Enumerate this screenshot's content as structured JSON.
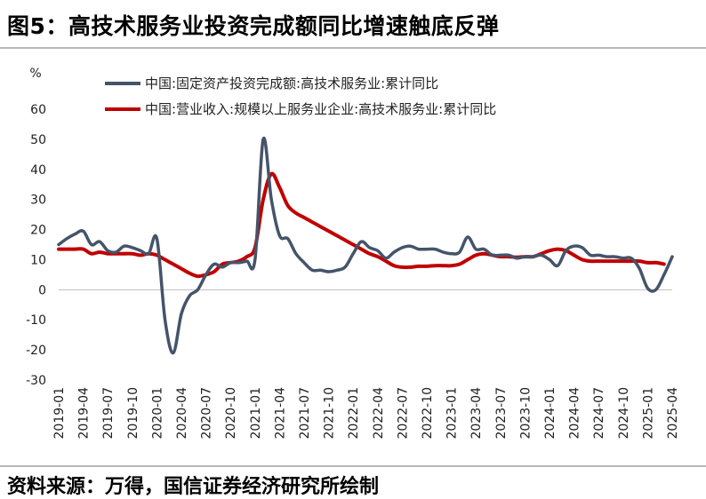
{
  "title": "图5：高技术服务业投资完成额同比增速触底反弹",
  "source": "资料来源：万得，国信证券经济研究所绘制",
  "chart_data": {
    "type": "line",
    "ylabel": "%",
    "ylim": [
      -30,
      60
    ],
    "yticks": [
      -30,
      -20,
      -10,
      0,
      10,
      20,
      30,
      40,
      50,
      60
    ],
    "xlim": [
      "2019-01",
      "2025-04"
    ],
    "xticks": [
      "2019-01",
      "2019-04",
      "2019-07",
      "2019-10",
      "2020-01",
      "2020-04",
      "2020-07",
      "2020-10",
      "2021-01",
      "2021-04",
      "2021-07",
      "2021-10",
      "2022-01",
      "2022-04",
      "2022-07",
      "2022-10",
      "2023-01",
      "2023-04",
      "2023-07",
      "2023-10",
      "2024-01",
      "2024-04",
      "2024-07",
      "2024-10",
      "2025-01",
      "2025-04"
    ],
    "legend_position": "top",
    "series": [
      {
        "name": "中国:固定资产投资完成额:高技术服务业:累计同比",
        "color": "#44546a",
        "points": [
          [
            "2019-01",
            15
          ],
          [
            "2019-02",
            17
          ],
          [
            "2019-03",
            18.5
          ],
          [
            "2019-04",
            19.5
          ],
          [
            "2019-05",
            15
          ],
          [
            "2019-06",
            16
          ],
          [
            "2019-07",
            13
          ],
          [
            "2019-08",
            12.5
          ],
          [
            "2019-09",
            14.5
          ],
          [
            "2019-10",
            14
          ],
          [
            "2019-11",
            13
          ],
          [
            "2019-12",
            12
          ],
          [
            "2020-01",
            17
          ],
          [
            "2020-02",
            -10
          ],
          [
            "2020-03",
            -21
          ],
          [
            "2020-04",
            -8
          ],
          [
            "2020-05",
            -2
          ],
          [
            "2020-06",
            0
          ],
          [
            "2020-07",
            5
          ],
          [
            "2020-08",
            8.5
          ],
          [
            "2020-09",
            7.5
          ],
          [
            "2020-10",
            9
          ],
          [
            "2020-11",
            9
          ],
          [
            "2020-12",
            9.5
          ],
          [
            "2021-01",
            10
          ],
          [
            "2021-02",
            50
          ],
          [
            "2021-03",
            30
          ],
          [
            "2021-04",
            18
          ],
          [
            "2021-05",
            17
          ],
          [
            "2021-06",
            12
          ],
          [
            "2021-07",
            9
          ],
          [
            "2021-08",
            6.5
          ],
          [
            "2021-09",
            6.5
          ],
          [
            "2021-10",
            6
          ],
          [
            "2021-11",
            6.5
          ],
          [
            "2021-12",
            7.5
          ],
          [
            "2022-01",
            12
          ],
          [
            "2022-02",
            16
          ],
          [
            "2022-03",
            14
          ],
          [
            "2022-04",
            13
          ],
          [
            "2022-05",
            10.5
          ],
          [
            "2022-06",
            12.5
          ],
          [
            "2022-07",
            14
          ],
          [
            "2022-08",
            14.5
          ],
          [
            "2022-09",
            13.5
          ],
          [
            "2022-10",
            13.5
          ],
          [
            "2022-11",
            13.5
          ],
          [
            "2022-12",
            12.5
          ],
          [
            "2023-01",
            12
          ],
          [
            "2023-02",
            12.5
          ],
          [
            "2023-03",
            17.5
          ],
          [
            "2023-04",
            13.5
          ],
          [
            "2023-05",
            13.5
          ],
          [
            "2023-06",
            11.5
          ],
          [
            "2023-07",
            11.5
          ],
          [
            "2023-08",
            11.5
          ],
          [
            "2023-09",
            10.5
          ],
          [
            "2023-10",
            11
          ],
          [
            "2023-11",
            11
          ],
          [
            "2023-12",
            11.5
          ],
          [
            "2024-01",
            10
          ],
          [
            "2024-02",
            8
          ],
          [
            "2024-03",
            13
          ],
          [
            "2024-04",
            14.5
          ],
          [
            "2024-05",
            14
          ],
          [
            "2024-06",
            11.5
          ],
          [
            "2024-07",
            11.5
          ],
          [
            "2024-08",
            11
          ],
          [
            "2024-09",
            11
          ],
          [
            "2024-10",
            10.5
          ],
          [
            "2024-11",
            10.5
          ],
          [
            "2024-12",
            7
          ],
          [
            "2025-01",
            0.5
          ],
          [
            "2025-02",
            0
          ],
          [
            "2025-03",
            5
          ],
          [
            "2025-04",
            11
          ]
        ]
      },
      {
        "name": "中国:营业收入:规模以上服务业企业:高技术服务业:累计同比",
        "color": "#c00000",
        "points": [
          [
            "2019-01",
            13.5
          ],
          [
            "2019-02",
            13.5
          ],
          [
            "2019-03",
            13.5
          ],
          [
            "2019-04",
            13.5
          ],
          [
            "2019-05",
            12
          ],
          [
            "2019-06",
            12.5
          ],
          [
            "2019-07",
            12
          ],
          [
            "2019-08",
            12
          ],
          [
            "2019-09",
            12
          ],
          [
            "2019-10",
            12
          ],
          [
            "2019-11",
            11.5
          ],
          [
            "2019-12",
            12
          ],
          [
            "2020-01",
            11.5
          ],
          [
            "2020-02",
            10
          ],
          [
            "2020-03",
            8.5
          ],
          [
            "2020-04",
            7
          ],
          [
            "2020-05",
            5.5
          ],
          [
            "2020-06",
            4.5
          ],
          [
            "2020-07",
            5
          ],
          [
            "2020-08",
            6
          ],
          [
            "2020-09",
            8.5
          ],
          [
            "2020-10",
            9
          ],
          [
            "2020-11",
            9.5
          ],
          [
            "2020-12",
            11
          ],
          [
            "2021-01",
            14
          ],
          [
            "2021-02",
            30
          ],
          [
            "2021-03",
            38.5
          ],
          [
            "2021-04",
            34
          ],
          [
            "2021-05",
            28
          ],
          [
            "2021-06",
            25.5
          ],
          [
            "2021-07",
            24
          ],
          [
            "2021-08",
            22.5
          ],
          [
            "2021-09",
            21
          ],
          [
            "2021-10",
            19.5
          ],
          [
            "2021-11",
            18
          ],
          [
            "2021-12",
            16.5
          ],
          [
            "2022-01",
            15
          ],
          [
            "2022-02",
            13.5
          ],
          [
            "2022-03",
            12
          ],
          [
            "2022-04",
            11
          ],
          [
            "2022-05",
            9.5
          ],
          [
            "2022-06",
            8
          ],
          [
            "2022-07",
            7.5
          ],
          [
            "2022-08",
            7.5
          ],
          [
            "2022-09",
            7.8
          ],
          [
            "2022-10",
            7.8
          ],
          [
            "2022-11",
            8
          ],
          [
            "2022-12",
            8
          ],
          [
            "2023-01",
            8
          ],
          [
            "2023-02",
            8.5
          ],
          [
            "2023-03",
            10
          ],
          [
            "2023-04",
            11.5
          ],
          [
            "2023-05",
            12
          ],
          [
            "2023-06",
            11.5
          ],
          [
            "2023-07",
            11
          ],
          [
            "2023-08",
            11
          ],
          [
            "2023-09",
            10.8
          ],
          [
            "2023-10",
            11
          ],
          [
            "2023-11",
            11
          ],
          [
            "2023-12",
            12
          ],
          [
            "2024-01",
            13
          ],
          [
            "2024-02",
            13.5
          ],
          [
            "2024-03",
            13
          ],
          [
            "2024-04",
            11.5
          ],
          [
            "2024-05",
            10
          ],
          [
            "2024-06",
            9.5
          ],
          [
            "2024-07",
            9.5
          ],
          [
            "2024-08",
            9.5
          ],
          [
            "2024-09",
            9.5
          ],
          [
            "2024-10",
            9.5
          ],
          [
            "2024-11",
            9.5
          ],
          [
            "2024-12",
            9.5
          ],
          [
            "2025-01",
            9
          ],
          [
            "2025-02",
            9
          ],
          [
            "2025-03",
            8.5
          ]
        ]
      }
    ]
  }
}
